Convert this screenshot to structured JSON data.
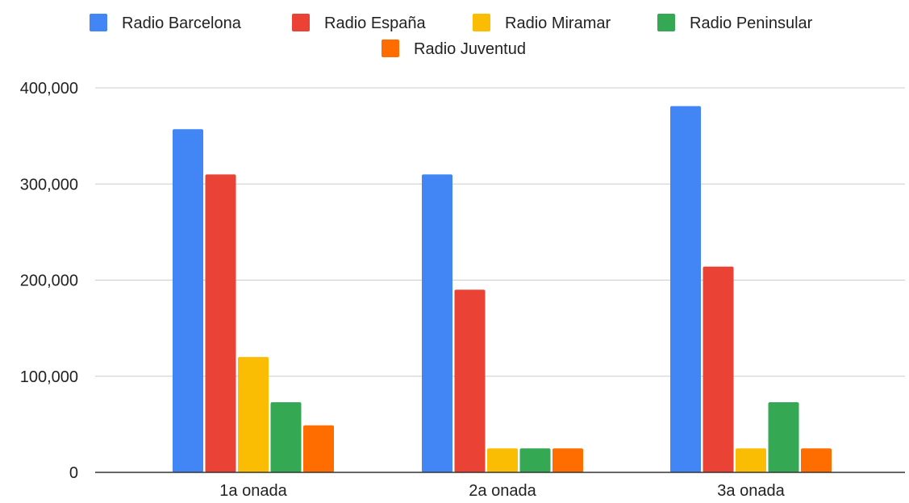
{
  "chart_data": {
    "type": "bar",
    "title": "",
    "xlabel": "",
    "ylabel": "",
    "categories": [
      "1a onada",
      "2a onada",
      "3a onada"
    ],
    "series": [
      {
        "name": "Radio Barcelona",
        "color": "#4285F4",
        "values": [
          357000,
          310000,
          381000
        ]
      },
      {
        "name": "Radio España",
        "color": "#EA4335",
        "values": [
          310000,
          190000,
          214000
        ]
      },
      {
        "name": "Radio Miramar",
        "color": "#FBBC04",
        "values": [
          120000,
          25000,
          25000
        ]
      },
      {
        "name": "Radio Peninsular",
        "color": "#34A853",
        "values": [
          73000,
          25000,
          73000
        ]
      },
      {
        "name": "Radio Juventud",
        "color": "#FF6D01",
        "values": [
          49000,
          25000,
          25000
        ]
      }
    ],
    "ylim": [
      0,
      400000
    ],
    "yticks": [
      {
        "value": 0,
        "label": "0"
      },
      {
        "value": 100000,
        "label": "100,000"
      },
      {
        "value": 200000,
        "label": "200,000"
      },
      {
        "value": 300000,
        "label": "300,000"
      },
      {
        "value": 400000,
        "label": "400,000"
      }
    ],
    "grid": true,
    "legend_position": "top",
    "colors": {
      "grid": "#cccccc",
      "axis": "#333333",
      "text": "#222222"
    }
  }
}
